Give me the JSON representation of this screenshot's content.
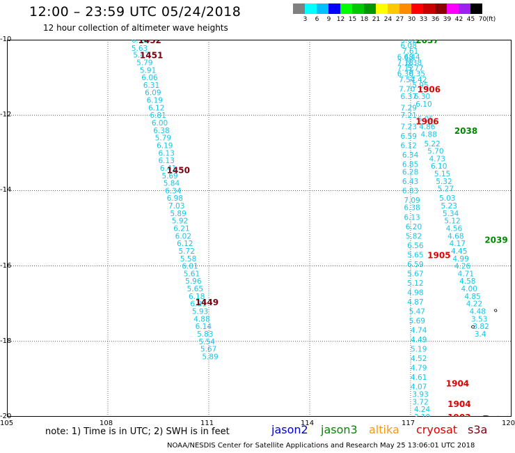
{
  "header": {
    "title": "12:00 – 23:59 UTC 05/24/2018",
    "subtitle": "12 hour collection of altimeter wave heights"
  },
  "legend": {
    "colors": [
      "#808080",
      "#00ffff",
      "#00bfff",
      "#0000ff",
      "#00ff00",
      "#00c800",
      "#009600",
      "#ffff00",
      "#ffc800",
      "#ff8c00",
      "#ff0000",
      "#c80000",
      "#8b0000",
      "#ff00ff",
      "#a020f0",
      "#000000"
    ],
    "ticks": [
      "3",
      "6",
      "9",
      "12",
      "15",
      "18",
      "21",
      "24",
      "27",
      "30",
      "33",
      "36",
      "39",
      "42",
      "45",
      "70",
      "(ft)"
    ]
  },
  "axes": {
    "lon_ticks": [
      "105",
      "108",
      "111",
      "114",
      "117",
      "120"
    ],
    "lat_ticks": [
      "-10",
      "-12",
      "-14",
      "-16",
      "-18",
      "-20"
    ],
    "lon_range": [
      105,
      120
    ],
    "lat_range": [
      -10,
      -20
    ]
  },
  "chart_data": {
    "type": "scatter",
    "tracks": [
      {
        "points": [
          {
            "lon": 108.7,
            "lat": -10.0,
            "swh": "6.31"
          },
          {
            "lon": 108.7,
            "lat": -10.22,
            "swh": "5.63"
          },
          {
            "lon": 108.75,
            "lat": -10.4,
            "swh": "5.47"
          },
          {
            "lon": 108.85,
            "lat": -10.6,
            "swh": "5.79"
          },
          {
            "lon": 108.95,
            "lat": -10.8,
            "swh": "5.91"
          },
          {
            "lon": 109.0,
            "lat": -11.0,
            "swh": "6.06"
          },
          {
            "lon": 109.05,
            "lat": -11.2,
            "swh": "6.31"
          },
          {
            "lon": 109.1,
            "lat": -11.4,
            "swh": "6.09"
          },
          {
            "lon": 109.15,
            "lat": -11.6,
            "swh": "6.19"
          },
          {
            "lon": 109.2,
            "lat": -11.8,
            "swh": "6.12"
          },
          {
            "lon": 109.25,
            "lat": -12.0,
            "swh": "6.81"
          },
          {
            "lon": 109.3,
            "lat": -12.2,
            "swh": "6.00"
          },
          {
            "lon": 109.35,
            "lat": -12.4,
            "swh": "6.38"
          },
          {
            "lon": 109.4,
            "lat": -12.6,
            "swh": "5.79"
          },
          {
            "lon": 109.45,
            "lat": -12.8,
            "swh": "6.19"
          },
          {
            "lon": 109.5,
            "lat": -13.0,
            "swh": "6.13"
          },
          {
            "lon": 109.5,
            "lat": -13.2,
            "swh": "6.13"
          },
          {
            "lon": 109.55,
            "lat": -13.4,
            "swh": "6.41"
          },
          {
            "lon": 109.6,
            "lat": -13.6,
            "swh": "5.69"
          },
          {
            "lon": 109.65,
            "lat": -13.8,
            "swh": "5.84"
          },
          {
            "lon": 109.7,
            "lat": -14.0,
            "swh": "6.34"
          },
          {
            "lon": 109.75,
            "lat": -14.2,
            "swh": "6.98"
          },
          {
            "lon": 109.8,
            "lat": -14.4,
            "swh": "7.03"
          },
          {
            "lon": 109.85,
            "lat": -14.6,
            "swh": "5.89"
          },
          {
            "lon": 109.9,
            "lat": -14.8,
            "swh": "5.92"
          },
          {
            "lon": 109.95,
            "lat": -15.0,
            "swh": "6.21"
          },
          {
            "lon": 110.0,
            "lat": -15.2,
            "swh": "6.02"
          },
          {
            "lon": 110.05,
            "lat": -15.4,
            "swh": "6.12"
          },
          {
            "lon": 110.1,
            "lat": -15.6,
            "swh": "5.72"
          },
          {
            "lon": 110.15,
            "lat": -15.8,
            "swh": "5.58"
          },
          {
            "lon": 110.2,
            "lat": -16.0,
            "swh": "6.01"
          },
          {
            "lon": 110.25,
            "lat": -16.2,
            "swh": "5.61"
          },
          {
            "lon": 110.3,
            "lat": -16.4,
            "swh": "5.96"
          },
          {
            "lon": 110.35,
            "lat": -16.6,
            "swh": "5.65"
          },
          {
            "lon": 110.4,
            "lat": -16.8,
            "swh": "6.18"
          },
          {
            "lon": 110.45,
            "lat": -17.0,
            "swh": "6.81"
          },
          {
            "lon": 110.5,
            "lat": -17.2,
            "swh": "5.93"
          },
          {
            "lon": 110.55,
            "lat": -17.4,
            "swh": "4.88"
          },
          {
            "lon": 110.6,
            "lat": -17.6,
            "swh": "6.14"
          },
          {
            "lon": 110.65,
            "lat": -17.8,
            "swh": "5.83"
          },
          {
            "lon": 110.7,
            "lat": -18.0,
            "swh": "5.54"
          },
          {
            "lon": 110.75,
            "lat": -18.2,
            "swh": "5.67"
          },
          {
            "lon": 110.8,
            "lat": -18.4,
            "swh": "5.89"
          }
        ]
      },
      {
        "points": [
          {
            "lon": 116.7,
            "lat": -10.0,
            "swh": "5.62"
          },
          {
            "lon": 116.7,
            "lat": -10.15,
            "swh": "6.08"
          },
          {
            "lon": 116.75,
            "lat": -10.3,
            "swh": "7.61"
          },
          {
            "lon": 116.6,
            "lat": -10.45,
            "swh": "6.48"
          },
          {
            "lon": 116.8,
            "lat": -10.45,
            "swh": "6.44"
          },
          {
            "lon": 116.6,
            "lat": -10.6,
            "swh": "7.18"
          },
          {
            "lon": 116.85,
            "lat": -10.6,
            "swh": "6.38"
          },
          {
            "lon": 116.6,
            "lat": -10.75,
            "swh": "7.12"
          },
          {
            "lon": 116.9,
            "lat": -10.75,
            "swh": "5.77"
          },
          {
            "lon": 116.6,
            "lat": -10.9,
            "swh": "6.30"
          },
          {
            "lon": 116.95,
            "lat": -10.9,
            "swh": "6.35"
          },
          {
            "lon": 116.65,
            "lat": -11.05,
            "swh": "7.54"
          },
          {
            "lon": 117.0,
            "lat": -11.05,
            "swh": "7.42"
          },
          {
            "lon": 117.05,
            "lat": -11.2,
            "swh": "5.95"
          },
          {
            "lon": 116.65,
            "lat": -11.3,
            "swh": "7.70"
          },
          {
            "lon": 116.7,
            "lat": -11.5,
            "swh": "6.37"
          },
          {
            "lon": 117.1,
            "lat": -11.5,
            "swh": "6.30"
          },
          {
            "lon": 117.15,
            "lat": -11.7,
            "swh": "6.10"
          },
          {
            "lon": 116.7,
            "lat": -11.8,
            "swh": "7.29"
          },
          {
            "lon": 116.7,
            "lat": -12.0,
            "swh": "7.21"
          },
          {
            "lon": 117.2,
            "lat": -12.1,
            "swh": "6.05"
          },
          {
            "lon": 116.7,
            "lat": -12.3,
            "swh": "7.23"
          },
          {
            "lon": 117.25,
            "lat": -12.3,
            "swh": "4.86"
          },
          {
            "lon": 117.3,
            "lat": -12.5,
            "swh": "4.88"
          },
          {
            "lon": 116.7,
            "lat": -12.55,
            "swh": "6.59"
          },
          {
            "lon": 117.4,
            "lat": -12.75,
            "swh": "5.22"
          },
          {
            "lon": 116.7,
            "lat": -12.8,
            "swh": "6.12"
          },
          {
            "lon": 117.5,
            "lat": -12.95,
            "swh": "5.70"
          },
          {
            "lon": 116.75,
            "lat": -13.05,
            "swh": "6.34"
          },
          {
            "lon": 117.55,
            "lat": -13.15,
            "swh": "4.73"
          },
          {
            "lon": 116.75,
            "lat": -13.3,
            "swh": "6.85"
          },
          {
            "lon": 117.6,
            "lat": -13.35,
            "swh": "6.10"
          },
          {
            "lon": 116.75,
            "lat": -13.5,
            "swh": "6.28"
          },
          {
            "lon": 117.7,
            "lat": -13.55,
            "swh": "5.15"
          },
          {
            "lon": 116.75,
            "lat": -13.75,
            "swh": "6.43"
          },
          {
            "lon": 117.75,
            "lat": -13.75,
            "swh": "5.32"
          },
          {
            "lon": 117.8,
            "lat": -13.95,
            "swh": "5.27"
          },
          {
            "lon": 116.75,
            "lat": -14.0,
            "swh": "6.83"
          },
          {
            "lon": 117.85,
            "lat": -14.2,
            "swh": "5.03"
          },
          {
            "lon": 116.8,
            "lat": -14.25,
            "swh": "7.09"
          },
          {
            "lon": 117.9,
            "lat": -14.4,
            "swh": "5.23"
          },
          {
            "lon": 116.8,
            "lat": -14.45,
            "swh": "6.38"
          },
          {
            "lon": 117.95,
            "lat": -14.6,
            "swh": "5.34"
          },
          {
            "lon": 116.8,
            "lat": -14.7,
            "swh": "6.13"
          },
          {
            "lon": 118.0,
            "lat": -14.8,
            "swh": "5.12"
          },
          {
            "lon": 116.85,
            "lat": -14.95,
            "swh": "6.20"
          },
          {
            "lon": 118.05,
            "lat": -15.0,
            "swh": "4.56"
          },
          {
            "lon": 116.85,
            "lat": -15.2,
            "swh": "5.82"
          },
          {
            "lon": 118.1,
            "lat": -15.2,
            "swh": "4.68"
          },
          {
            "lon": 118.15,
            "lat": -15.4,
            "swh": "4.17"
          },
          {
            "lon": 116.9,
            "lat": -15.45,
            "swh": "6.56"
          },
          {
            "lon": 118.2,
            "lat": -15.6,
            "swh": "4.45"
          },
          {
            "lon": 116.9,
            "lat": -15.7,
            "swh": "5.65"
          },
          {
            "lon": 118.25,
            "lat": -15.8,
            "swh": "4.99"
          },
          {
            "lon": 116.9,
            "lat": -15.95,
            "swh": "6.59"
          },
          {
            "lon": 118.3,
            "lat": -16.0,
            "swh": "4.26"
          },
          {
            "lon": 116.9,
            "lat": -16.2,
            "swh": "5.67"
          },
          {
            "lon": 118.4,
            "lat": -16.2,
            "swh": "4.71"
          },
          {
            "lon": 118.45,
            "lat": -16.4,
            "swh": "4.58"
          },
          {
            "lon": 116.9,
            "lat": -16.45,
            "swh": "5.12"
          },
          {
            "lon": 118.5,
            "lat": -16.6,
            "swh": "4.00"
          },
          {
            "lon": 116.9,
            "lat": -16.7,
            "swh": "4.98"
          },
          {
            "lon": 118.6,
            "lat": -16.8,
            "swh": "4.85"
          },
          {
            "lon": 116.9,
            "lat": -16.95,
            "swh": "4.87"
          },
          {
            "lon": 118.65,
            "lat": -17.0,
            "swh": "4.22"
          },
          {
            "lon": 116.95,
            "lat": -17.2,
            "swh": "5.47"
          },
          {
            "lon": 118.75,
            "lat": -17.2,
            "swh": "4.48"
          },
          {
            "lon": 118.8,
            "lat": -17.4,
            "swh": "3.53"
          },
          {
            "lon": 116.95,
            "lat": -17.45,
            "swh": "5.69"
          },
          {
            "lon": 118.85,
            "lat": -17.6,
            "swh": "3.82"
          },
          {
            "lon": 117.0,
            "lat": -17.7,
            "swh": "4.74"
          },
          {
            "lon": 118.9,
            "lat": -17.8,
            "swh": "3.4"
          },
          {
            "lon": 117.0,
            "lat": -17.95,
            "swh": "4.49"
          },
          {
            "lon": 117.0,
            "lat": -18.2,
            "swh": "5.19"
          },
          {
            "lon": 117.0,
            "lat": -18.45,
            "swh": "4.52"
          },
          {
            "lon": 117.0,
            "lat": -18.7,
            "swh": "4.79"
          },
          {
            "lon": 117.0,
            "lat": -18.95,
            "swh": "4.61"
          },
          {
            "lon": 117.0,
            "lat": -19.2,
            "swh": "4.07"
          },
          {
            "lon": 117.05,
            "lat": -19.4,
            "swh": "3.93"
          },
          {
            "lon": 117.05,
            "lat": -19.6,
            "swh": "3.72"
          },
          {
            "lon": 117.1,
            "lat": -19.8,
            "swh": "4.24"
          },
          {
            "lon": 117.1,
            "lat": -20.0,
            "swh": "3.10"
          }
        ]
      }
    ],
    "orbit_labels": [
      {
        "text": "1452",
        "lon": 108.9,
        "lat": -10.0,
        "color": "#7a0010"
      },
      {
        "text": "1451",
        "lon": 108.95,
        "lat": -10.4,
        "color": "#7a0010"
      },
      {
        "text": "1450",
        "lon": 109.75,
        "lat": -13.45,
        "color": "#7a0010"
      },
      {
        "text": "1449",
        "lon": 110.6,
        "lat": -16.95,
        "color": "#7a0010"
      },
      {
        "text": "2037",
        "lon": 117.15,
        "lat": -10.0,
        "color": "#008800"
      },
      {
        "text": "2038",
        "lon": 118.3,
        "lat": -12.4,
        "color": "#008800"
      },
      {
        "text": "2039",
        "lon": 119.2,
        "lat": -15.3,
        "color": "#008800"
      },
      {
        "text": "1906",
        "lon": 117.2,
        "lat": -11.3,
        "color": "#e00000"
      },
      {
        "text": "1906",
        "lon": 117.15,
        "lat": -12.15,
        "color": "#e00000"
      },
      {
        "text": "1905",
        "lon": 117.5,
        "lat": -15.7,
        "color": "#e00000"
      },
      {
        "text": "1904",
        "lon": 118.05,
        "lat": -19.1,
        "color": "#e00000"
      },
      {
        "text": "1904",
        "lon": 118.1,
        "lat": -19.65,
        "color": "#e00000"
      },
      {
        "text": "1903",
        "lon": 118.1,
        "lat": -20.0,
        "color": "#e00000"
      }
    ]
  },
  "note": "note:  1) Time is in UTC;  2) SWH is in feet",
  "satellites": [
    {
      "name": "jason2",
      "color": "#0000cc"
    },
    {
      "name": "jason3",
      "color": "#008800"
    },
    {
      "name": "altika",
      "color": "#ff9900"
    },
    {
      "name": "cryosat",
      "color": "#e00000"
    },
    {
      "name": "s3a",
      "color": "#7a0010"
    }
  ],
  "footer": "NOAA/NESDIS Center for Satellite Applications and Research     May 25 13:06:01 UTC 2018"
}
